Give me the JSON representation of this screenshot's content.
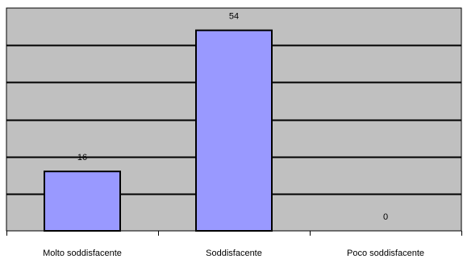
{
  "chart_data": {
    "type": "bar",
    "categories": [
      "Molto soddisfacente",
      "Soddisfacente",
      "Poco soddisfacente"
    ],
    "values": [
      16,
      54,
      0
    ],
    "data_labels": [
      "16",
      "54",
      "0"
    ],
    "title": "",
    "xlabel": "",
    "ylabel": "",
    "ylim": [
      0,
      60
    ],
    "y_step": 10,
    "grid": true,
    "show_y_tick_labels": false,
    "legend": "none"
  },
  "colors": {
    "plot_background": "#c0c0c0",
    "bar_fill": "#9999ff",
    "bar_stroke": "#000000",
    "gridline": "#000000",
    "axis": "#000000",
    "text": "#000000"
  }
}
